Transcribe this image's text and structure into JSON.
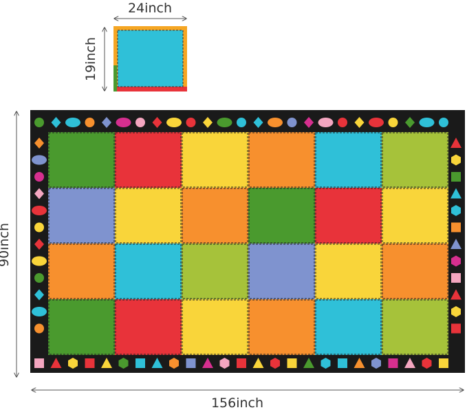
{
  "labels": {
    "small_width": "24inch",
    "small_height": "19inch",
    "rug_height": "90inch",
    "rug_width": "156inch"
  }
}
